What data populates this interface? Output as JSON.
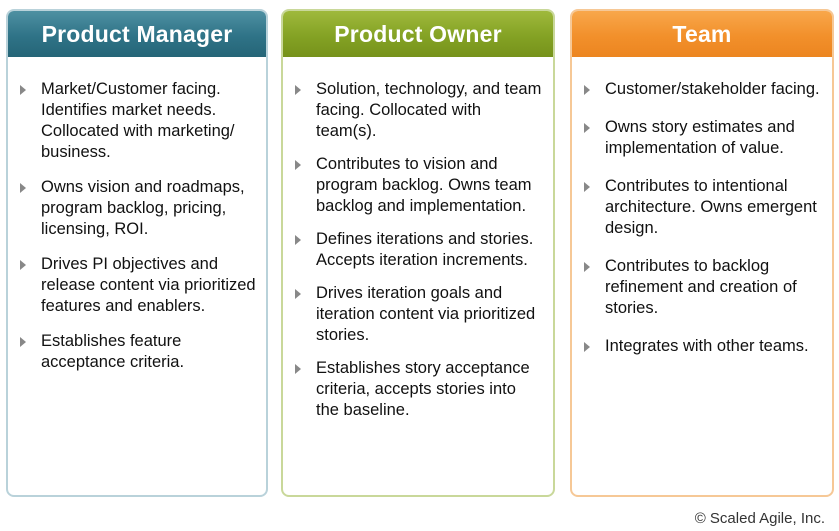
{
  "columns": [
    {
      "key": "pm",
      "title": "Product Manager",
      "header_color": "#2f7387",
      "items": [
        "Market/Customer facing. Identifies market needs. Collocated with marketing/ business.",
        "Owns vision and roadmaps, program backlog, pricing, licensing, ROI.",
        "Drives PI objectives and release content via prioritized features and enablers.",
        "Establishes feature acceptance criteria."
      ]
    },
    {
      "key": "po",
      "title": "Product Owner",
      "header_color": "#84a224",
      "items": [
        "Solution, technology, and team facing. Collocated with team(s).",
        "Contributes to vision and program backlog. Owns team backlog and implementation.",
        "Defines iterations and stories. Accepts iteration increments.",
        "Drives iteration goals and iteration content via prioritized stories.",
        "Establishes story acceptance criteria, accepts stories into the baseline."
      ]
    },
    {
      "key": "tm",
      "title": "Team",
      "header_color": "#f2902b",
      "items": [
        "Customer/stakeholder facing.",
        "Owns story estimates and implementation of value.",
        "Contributes to intentional architecture. Owns emergent design.",
        "Contributes to backlog refinement and creation of stories.",
        "Integrates with other teams."
      ]
    }
  ],
  "footer": {
    "copyright": "© Scaled Agile, Inc."
  }
}
